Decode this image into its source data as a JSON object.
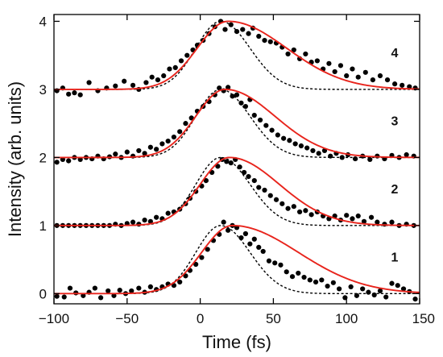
{
  "chart_data": {
    "type": "line",
    "title": "",
    "xlabel": "Time (fs)",
    "ylabel": "Intensity (arb. units)",
    "xlim": [
      -100,
      150
    ],
    "ylim": [
      -0.15,
      4.1
    ],
    "x_ticks": [
      -100,
      -50,
      0,
      50,
      100,
      150
    ],
    "x_tick_labels": [
      "−100",
      "−50",
      "0",
      "50",
      "100",
      "150"
    ],
    "y_ticks": [
      0,
      1,
      2,
      3,
      4
    ],
    "y_tick_labels": [
      "0",
      "1",
      "2",
      "3",
      "4"
    ],
    "grid": false,
    "colors": {
      "fit": "#e8241c",
      "reference": "#000000",
      "points": "#000000",
      "axes": "#000000"
    },
    "traces": [
      {
        "label": "1",
        "offset": 0,
        "fit": {
          "center": 22,
          "sigma_left": 21,
          "sigma_right": 45,
          "peak": 1.0
        },
        "reference": {
          "center": 14,
          "sigma_left": 17,
          "sigma_right": 20,
          "peak": 1.0
        },
        "points": [
          [
            -98,
            -0.04
          ],
          [
            -93,
            -0.05
          ],
          [
            -89,
            0.08
          ],
          [
            -85,
            0.01
          ],
          [
            -80,
            -0.03
          ],
          [
            -76,
            0.02
          ],
          [
            -72,
            0.08
          ],
          [
            -68,
            -0.06
          ],
          [
            -63,
            0.04
          ],
          [
            -59,
            -0.03
          ],
          [
            -55,
            0.05
          ],
          [
            -51,
            0.0
          ],
          [
            -47,
            0.04
          ],
          [
            -42,
            0.08
          ],
          [
            -38,
            0.02
          ],
          [
            -34,
            0.1
          ],
          [
            -30,
            0.06
          ],
          [
            -26,
            0.1
          ],
          [
            -22,
            0.14
          ],
          [
            -18,
            0.12
          ],
          [
            -14,
            0.17
          ],
          [
            -10,
            0.26
          ],
          [
            -7,
            0.34
          ],
          [
            -3,
            0.43
          ],
          [
            1,
            0.53
          ],
          [
            5,
            0.65
          ],
          [
            9,
            0.78
          ],
          [
            13,
            0.87
          ],
          [
            16,
            1.05
          ],
          [
            19,
            0.93
          ],
          [
            22,
            1.0
          ],
          [
            25,
            0.97
          ],
          [
            28,
            0.82
          ],
          [
            31,
            0.88
          ],
          [
            34,
            0.73
          ],
          [
            37,
            0.8
          ],
          [
            40,
            0.68
          ],
          [
            43,
            0.62
          ],
          [
            47,
            0.48
          ],
          [
            51,
            0.45
          ],
          [
            55,
            0.42
          ],
          [
            59,
            0.32
          ],
          [
            63,
            0.25
          ],
          [
            67,
            0.3
          ],
          [
            71,
            0.24
          ],
          [
            75,
            0.2
          ],
          [
            79,
            0.17
          ],
          [
            83,
            0.2
          ],
          [
            87,
            0.11
          ],
          [
            91,
            0.16
          ],
          [
            95,
            0.07
          ],
          [
            99,
            -0.06
          ],
          [
            103,
            0.1
          ],
          [
            107,
            -0.03
          ],
          [
            111,
            0.07
          ],
          [
            115,
            0.02
          ],
          [
            119,
            -0.02
          ],
          [
            123,
            0.04
          ],
          [
            127,
            -0.05
          ],
          [
            131,
            0.15
          ],
          [
            135,
            0.12
          ],
          [
            139,
            0.07
          ],
          [
            143,
            0.03
          ],
          [
            147,
            -0.08
          ]
        ]
      },
      {
        "label": "2",
        "offset": 1,
        "fit": {
          "center": 20,
          "sigma_left": 20,
          "sigma_right": 34,
          "peak": 1.0
        },
        "reference": {
          "center": 14,
          "sigma_left": 17,
          "sigma_right": 20,
          "peak": 1.0
        },
        "points": [
          [
            -98,
            1.0
          ],
          [
            -94,
            1.0
          ],
          [
            -90,
            1.0
          ],
          [
            -86,
            1.0
          ],
          [
            -82,
            1.0
          ],
          [
            -78,
            1.0
          ],
          [
            -74,
            1.0
          ],
          [
            -70,
            1.0
          ],
          [
            -66,
            1.0
          ],
          [
            -62,
            1.0
          ],
          [
            -58,
            1.02
          ],
          [
            -54,
            1.0
          ],
          [
            -50,
            1.03
          ],
          [
            -46,
            1.05
          ],
          [
            -42,
            1.02
          ],
          [
            -38,
            1.08
          ],
          [
            -34,
            1.06
          ],
          [
            -30,
            1.12
          ],
          [
            -26,
            1.1
          ],
          [
            -22,
            1.18
          ],
          [
            -18,
            1.2
          ],
          [
            -14,
            1.24
          ],
          [
            -10,
            1.32
          ],
          [
            -7,
            1.4
          ],
          [
            -3,
            1.5
          ],
          [
            1,
            1.58
          ],
          [
            4,
            1.66
          ],
          [
            8,
            1.78
          ],
          [
            12,
            1.87
          ],
          [
            15,
            1.97
          ],
          [
            18,
            1.94
          ],
          [
            21,
            1.92
          ],
          [
            24,
            1.97
          ],
          [
            27,
            1.86
          ],
          [
            30,
            1.78
          ],
          [
            33,
            1.72
          ],
          [
            37,
            1.66
          ],
          [
            40,
            1.56
          ],
          [
            44,
            1.52
          ],
          [
            48,
            1.44
          ],
          [
            52,
            1.38
          ],
          [
            56,
            1.32
          ],
          [
            60,
            1.25
          ],
          [
            64,
            1.28
          ],
          [
            68,
            1.2
          ],
          [
            72,
            1.22
          ],
          [
            76,
            1.16
          ],
          [
            80,
            1.2
          ],
          [
            84,
            1.14
          ],
          [
            88,
            1.1
          ],
          [
            92,
            1.14
          ],
          [
            96,
            1.08
          ],
          [
            100,
            1.15
          ],
          [
            104,
            1.1
          ],
          [
            108,
            1.14
          ],
          [
            112,
            1.06
          ],
          [
            117,
            1.12
          ],
          [
            121,
            1.05
          ],
          [
            126,
            1.02
          ],
          [
            131,
            1.05
          ],
          [
            136,
            1.0
          ],
          [
            141,
            1.02
          ],
          [
            146,
            1.0
          ]
        ]
      },
      {
        "label": "3",
        "offset": 2,
        "fit": {
          "center": 17,
          "sigma_left": 20,
          "sigma_right": 34,
          "peak": 1.0
        },
        "reference": {
          "center": 14,
          "sigma_left": 17,
          "sigma_right": 20,
          "peak": 1.0
        },
        "points": [
          [
            -98,
            1.93
          ],
          [
            -94,
            1.97
          ],
          [
            -90,
            1.95
          ],
          [
            -86,
            2.0
          ],
          [
            -82,
            1.97
          ],
          [
            -78,
            2.0
          ],
          [
            -74,
            1.98
          ],
          [
            -70,
            2.02
          ],
          [
            -66,
            1.98
          ],
          [
            -62,
            2.01
          ],
          [
            -58,
            2.05
          ],
          [
            -54,
            2.0
          ],
          [
            -50,
            2.08
          ],
          [
            -46,
            2.02
          ],
          [
            -42,
            2.1
          ],
          [
            -38,
            2.06
          ],
          [
            -34,
            2.15
          ],
          [
            -30,
            2.12
          ],
          [
            -26,
            2.2
          ],
          [
            -22,
            2.24
          ],
          [
            -18,
            2.3
          ],
          [
            -14,
            2.38
          ],
          [
            -10,
            2.5
          ],
          [
            -6,
            2.58
          ],
          [
            -2,
            2.68
          ],
          [
            2,
            2.75
          ],
          [
            6,
            2.82
          ],
          [
            10,
            2.92
          ],
          [
            13,
            3.02
          ],
          [
            16,
            2.98
          ],
          [
            19,
            3.03
          ],
          [
            22,
            2.9
          ],
          [
            25,
            2.92
          ],
          [
            28,
            2.8
          ],
          [
            31,
            2.75
          ],
          [
            34,
            2.85
          ],
          [
            37,
            2.62
          ],
          [
            41,
            2.55
          ],
          [
            45,
            2.47
          ],
          [
            49,
            2.4
          ],
          [
            53,
            2.33
          ],
          [
            57,
            2.28
          ],
          [
            61,
            2.25
          ],
          [
            65,
            2.2
          ],
          [
            69,
            2.17
          ],
          [
            73,
            2.14
          ],
          [
            77,
            2.1
          ],
          [
            81,
            2.06
          ],
          [
            85,
            2.1
          ],
          [
            89,
            2.02
          ],
          [
            93,
            2.06
          ],
          [
            97,
            2.0
          ],
          [
            101,
            2.04
          ],
          [
            106,
            1.98
          ],
          [
            111,
            2.02
          ],
          [
            116,
            1.97
          ],
          [
            121,
            2.02
          ],
          [
            126,
            1.98
          ],
          [
            131,
            2.03
          ],
          [
            136,
            2.0
          ],
          [
            141,
            2.04
          ],
          [
            146,
            2.02
          ]
        ]
      },
      {
        "label": "4",
        "offset": 3,
        "fit": {
          "center": 19,
          "sigma_left": 21,
          "sigma_right": 40,
          "peak": 1.0
        },
        "reference": {
          "center": 14,
          "sigma_left": 17,
          "sigma_right": 20,
          "peak": 1.0
        },
        "points": [
          [
            -98,
            2.98
          ],
          [
            -94,
            3.02
          ],
          [
            -90,
            2.93
          ],
          [
            -86,
            2.95
          ],
          [
            -82,
            2.92
          ],
          [
            -76,
            3.1
          ],
          [
            -70,
            2.98
          ],
          [
            -64,
            3.02
          ],
          [
            -58,
            3.05
          ],
          [
            -52,
            3.12
          ],
          [
            -46,
            3.06
          ],
          [
            -42,
            3.0
          ],
          [
            -37,
            3.1
          ],
          [
            -33,
            3.18
          ],
          [
            -29,
            3.14
          ],
          [
            -25,
            3.2
          ],
          [
            -21,
            3.3
          ],
          [
            -17,
            3.32
          ],
          [
            -13,
            3.42
          ],
          [
            -9,
            3.5
          ],
          [
            -5,
            3.58
          ],
          [
            -2,
            3.65
          ],
          [
            2,
            3.72
          ],
          [
            6,
            3.82
          ],
          [
            10,
            3.92
          ],
          [
            14,
            4.0
          ],
          [
            17,
            3.88
          ],
          [
            21,
            3.95
          ],
          [
            25,
            3.85
          ],
          [
            29,
            3.88
          ],
          [
            33,
            3.82
          ],
          [
            36,
            3.9
          ],
          [
            40,
            3.78
          ],
          [
            44,
            3.72
          ],
          [
            48,
            3.7
          ],
          [
            52,
            3.68
          ],
          [
            56,
            3.62
          ],
          [
            60,
            3.52
          ],
          [
            64,
            3.58
          ],
          [
            68,
            3.45
          ],
          [
            72,
            3.52
          ],
          [
            76,
            3.4
          ],
          [
            80,
            3.42
          ],
          [
            84,
            3.3
          ],
          [
            88,
            3.38
          ],
          [
            92,
            3.26
          ],
          [
            96,
            3.35
          ],
          [
            100,
            3.2
          ],
          [
            104,
            3.3
          ],
          [
            108,
            3.18
          ],
          [
            113,
            3.25
          ],
          [
            118,
            3.14
          ],
          [
            123,
            3.2
          ],
          [
            128,
            3.14
          ],
          [
            133,
            3.08
          ],
          [
            138,
            3.06
          ],
          [
            143,
            3.04
          ],
          [
            147,
            3.02
          ]
        ]
      }
    ]
  }
}
